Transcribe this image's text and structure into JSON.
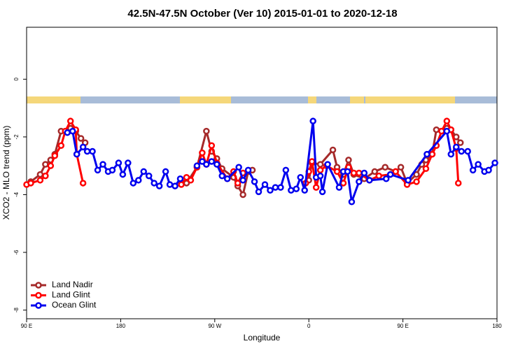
{
  "chart_data": {
    "type": "line",
    "title": "42.5N-47.5N October (Ver 10)   2015-01-01 to 2020-12-18",
    "x_label": "Longitude",
    "y_label": "XCO2 - MLO trend (ppm)",
    "xlim": [
      90,
      540
    ],
    "ylim": [
      -8.3,
      1.8
    ],
    "xticks": [
      {
        "value": 90,
        "label": "90 E"
      },
      180,
      {
        "value": 270,
        "label": "90 W"
      },
      {
        "value": 360,
        "label": "0"
      },
      {
        "value": 450,
        "label": "90 E"
      },
      {
        "value": 540,
        "label": "180"
      }
    ],
    "yticks": [
      0,
      -2,
      -4,
      -6,
      -8
    ],
    "legend": "bottom-left",
    "series": [
      {
        "name": "Land Nadir",
        "color": "#a52a2a",
        "x": [
          94,
          103,
          108,
          113,
          117,
          123,
          132,
          137,
          142,
          146,
          null,
          243,
          253,
          262,
          267,
          272,
          277,
          288,
          292,
          297,
          302,
          306,
          null,
          360,
          363,
          371,
          383,
          387,
          393,
          398,
          403,
          413,
          423,
          433,
          443,
          448,
          454,
          463,
          468,
          472,
          478,
          482,
          492,
          496,
          501,
          505
        ],
        "values": [
          -3.55,
          -3.3,
          -2.95,
          -2.8,
          -2.6,
          -1.8,
          -1.7,
          -1.8,
          -2.05,
          -2.2,
          null,
          -3.6,
          -3.05,
          -1.8,
          -2.5,
          -2.75,
          -3.1,
          -3.4,
          -3.7,
          -4.0,
          -3.2,
          -3.15,
          null,
          -3.5,
          -2.9,
          -2.95,
          -2.45,
          -3.05,
          -3.3,
          -2.8,
          -3.3,
          -3.45,
          -3.2,
          -3.05,
          -3.2,
          -3.05,
          -3.6,
          -3.3,
          -2.95,
          -2.8,
          -2.6,
          -1.75,
          -1.7,
          -1.75,
          -2.0,
          -2.2
        ]
      },
      {
        "name": "Land Glint",
        "color": "#ff0000",
        "x": [
          90,
          94,
          103,
          108,
          113,
          117,
          123,
          127,
          132,
          137,
          138,
          144,
          null,
          238,
          243,
          247,
          253,
          258,
          262,
          267,
          272,
          282,
          288,
          292,
          297,
          null,
          357,
          360,
          363,
          367,
          371,
          377,
          387,
          393,
          398,
          403,
          408,
          418,
          427,
          438,
          443,
          454,
          463,
          472,
          478,
          482,
          487,
          492,
          496,
          501,
          503
        ],
        "values": [
          -3.65,
          -3.6,
          -3.5,
          -3.35,
          -3.0,
          -2.65,
          -2.3,
          -1.8,
          -1.45,
          -1.75,
          -2.6,
          -3.6,
          null,
          -3.65,
          -3.4,
          -3.5,
          -3.05,
          -2.55,
          -2.95,
          -2.3,
          -2.9,
          -3.45,
          -3.2,
          -3.6,
          -3.25,
          null,
          -3.6,
          -3.2,
          -2.85,
          -3.75,
          -3.15,
          -3.0,
          -3.2,
          -3.6,
          -3.05,
          -3.25,
          -3.25,
          -3.5,
          -3.35,
          -3.3,
          -3.2,
          -3.65,
          -3.55,
          -3.1,
          -2.6,
          -2.3,
          -1.8,
          -1.45,
          -1.75,
          -2.4,
          -3.6
        ]
      },
      {
        "name": "Ocean Glint",
        "color": "#0000ee",
        "x": [
          129,
          134,
          138,
          144,
          148,
          153,
          158,
          163,
          168,
          172,
          178,
          182,
          187,
          192,
          197,
          202,
          207,
          212,
          217,
          223,
          227,
          232,
          237,
          null,
          253,
          258,
          262,
          267,
          272,
          277,
          282,
          293,
          297,
          302,
          308,
          312,
          318,
          323,
          328,
          333,
          338,
          343,
          348,
          352,
          356,
          364,
          367,
          371,
          373,
          378,
          389,
          393,
          397,
          401,
          408,
          413,
          418,
          434,
          438,
          455,
          473,
          492,
          496,
          501,
          506,
          512,
          517,
          522,
          528,
          532,
          538
        ],
        "values": [
          -1.85,
          -1.8,
          -2.6,
          -2.35,
          -2.5,
          -2.5,
          -3.15,
          -2.95,
          -3.2,
          -3.15,
          -2.9,
          -3.3,
          -2.9,
          -3.6,
          -3.5,
          -3.2,
          -3.35,
          -3.6,
          -3.7,
          -3.2,
          -3.65,
          -3.7,
          -3.45,
          null,
          -3.0,
          -2.85,
          -2.95,
          -2.85,
          -2.95,
          -3.35,
          -3.45,
          -3.05,
          -3.5,
          -3.15,
          -3.55,
          -3.9,
          -3.65,
          -3.85,
          -3.75,
          -3.75,
          -3.15,
          -3.85,
          -3.8,
          -3.4,
          -3.85,
          -1.45,
          -3.4,
          -3.35,
          -3.9,
          -2.95,
          -3.75,
          -3.2,
          -3.2,
          -4.25,
          -3.55,
          -3.25,
          -3.5,
          -3.45,
          -3.3,
          -3.5,
          -2.6,
          -1.8,
          -2.6,
          -2.35,
          -2.5,
          -2.5,
          -3.15,
          -2.95,
          -3.2,
          -3.15,
          -2.9
        ]
      }
    ]
  }
}
